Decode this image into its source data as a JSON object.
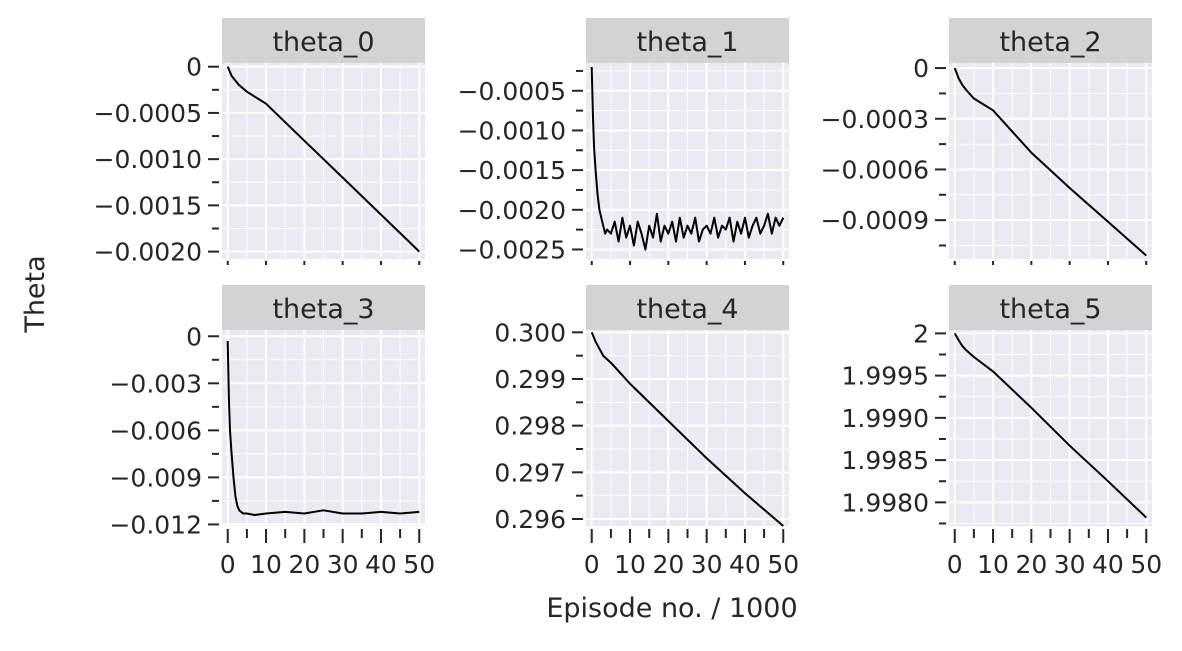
{
  "chart_data": {
    "type": "line",
    "layout": "facet-grid-2x3",
    "xlabel": "Episode no. / 1000",
    "ylabel": "Theta",
    "xticks": [
      0,
      10,
      20,
      30,
      40,
      50
    ],
    "xlim": [
      -1.5,
      51.5
    ],
    "grid": true,
    "panel_background": "#EAEAF2",
    "strip_background": "#D3D3D3",
    "line_color": "#000000",
    "facets": [
      {
        "label": "theta_0",
        "ylim": [
          -0.00208,
          4e-05
        ],
        "yticks": [
          0,
          -0.0005,
          -0.001,
          -0.0015,
          -0.002
        ],
        "ytick_labels": [
          "0",
          "−0.0005",
          "−0.0010",
          "−0.0015",
          "−0.0020"
        ],
        "x": [
          0,
          0.5,
          1,
          2,
          3,
          5,
          10,
          20,
          30,
          40,
          50
        ],
        "y": [
          0,
          -5e-05,
          -0.0001,
          -0.00015,
          -0.0002,
          -0.00027,
          -0.0004,
          -0.0008,
          -0.0012,
          -0.0016,
          -0.002
        ]
      },
      {
        "label": "theta_1",
        "ylim": [
          -0.00262,
          -0.00015
        ],
        "yticks": [
          -0.0005,
          -0.001,
          -0.0015,
          -0.002,
          -0.0025
        ],
        "ytick_labels": [
          "−0.0005",
          "−0.0010",
          "−0.0015",
          "−0.0020",
          "−0.0025"
        ],
        "x": [
          0,
          0.3,
          0.6,
          1,
          1.5,
          2,
          2.5,
          3,
          3.5,
          4,
          5,
          6,
          7,
          8,
          9,
          10,
          11,
          12,
          13,
          14,
          15,
          16,
          17,
          18,
          19,
          20,
          21,
          22,
          23,
          24,
          25,
          26,
          27,
          28,
          29,
          30,
          31,
          32,
          33,
          34,
          35,
          36,
          37,
          38,
          39,
          40,
          41,
          42,
          43,
          44,
          45,
          46,
          47,
          48,
          49,
          50
        ],
        "y": [
          -0.0002,
          -0.0008,
          -0.0012,
          -0.0015,
          -0.0018,
          -0.002,
          -0.0021,
          -0.0022,
          -0.0023,
          -0.00225,
          -0.0023,
          -0.00215,
          -0.0024,
          -0.0021,
          -0.00235,
          -0.0022,
          -0.00245,
          -0.00215,
          -0.0023,
          -0.0025,
          -0.0022,
          -0.00235,
          -0.00205,
          -0.0024,
          -0.0022,
          -0.0023,
          -0.00215,
          -0.0024,
          -0.0021,
          -0.00235,
          -0.0022,
          -0.0023,
          -0.0021,
          -0.0024,
          -0.00225,
          -0.0022,
          -0.0023,
          -0.0021,
          -0.00235,
          -0.0022,
          -0.00225,
          -0.0021,
          -0.0024,
          -0.00215,
          -0.0023,
          -0.0021,
          -0.00235,
          -0.0022,
          -0.0021,
          -0.0023,
          -0.0022,
          -0.00205,
          -0.0023,
          -0.0021,
          -0.0022,
          -0.0021
        ]
      },
      {
        "label": "theta_2",
        "ylim": [
          -0.00113,
          3e-05
        ],
        "yticks": [
          0,
          -0.0003,
          -0.0006,
          -0.0009
        ],
        "ytick_labels": [
          "0",
          "−0.0003",
          "−0.0006",
          "−0.0009"
        ],
        "x": [
          0,
          0.5,
          1,
          2,
          3,
          5,
          10,
          20,
          30,
          40,
          50
        ],
        "y": [
          0,
          -3e-05,
          -6e-05,
          -0.0001,
          -0.00013,
          -0.00018,
          -0.00025,
          -0.0005,
          -0.00071,
          -0.00091,
          -0.00111
        ]
      },
      {
        "label": "theta_3",
        "ylim": [
          -0.0121,
          0.0004
        ],
        "yticks": [
          0,
          -0.003,
          -0.006,
          -0.009,
          -0.012
        ],
        "ytick_labels": [
          "0",
          "−0.003",
          "−0.006",
          "−0.009",
          "−0.012"
        ],
        "x": [
          0,
          0.3,
          0.6,
          1,
          1.5,
          2,
          2.5,
          3,
          4,
          5,
          7,
          10,
          15,
          20,
          25,
          30,
          35,
          40,
          45,
          50
        ],
        "y": [
          -0.0003,
          -0.004,
          -0.006,
          -0.0075,
          -0.009,
          -0.0102,
          -0.0108,
          -0.0111,
          -0.0113,
          -0.0113,
          -0.0114,
          -0.0113,
          -0.0112,
          -0.0113,
          -0.0111,
          -0.0113,
          -0.0113,
          -0.0112,
          -0.0113,
          -0.0112
        ]
      },
      {
        "label": "theta_4",
        "ylim": [
          2.9585,
          3.0005
        ],
        "ytick_scale": 0.1,
        "yticks": [
          3.0,
          2.99,
          2.98,
          2.97,
          2.96
        ],
        "ytick_labels": [
          "0.300",
          "0.299",
          "0.298",
          "0.297",
          "0.296"
        ],
        "x": [
          0,
          0.5,
          1,
          2,
          3,
          5,
          10,
          20,
          30,
          40,
          50
        ],
        "y": [
          3.0,
          2.999,
          2.998,
          2.9965,
          2.995,
          2.9935,
          2.989,
          2.981,
          2.973,
          2.9655,
          2.9585
        ]
      },
      {
        "label": "theta_5",
        "ylim": [
          1.99772,
          2.00004
        ],
        "yticks": [
          2.0,
          1.9995,
          1.999,
          1.9985,
          1.998
        ],
        "ytick_labels": [
          "2",
          "1.9995",
          "1.9990",
          "1.9985",
          "1.9980"
        ],
        "x": [
          0,
          0.5,
          1,
          2,
          3,
          5,
          10,
          20,
          30,
          40,
          50
        ],
        "y": [
          2.0,
          1.99996,
          1.99992,
          1.99985,
          1.9998,
          1.99972,
          1.99955,
          1.99912,
          1.99867,
          1.99825,
          1.99782
        ]
      }
    ]
  }
}
